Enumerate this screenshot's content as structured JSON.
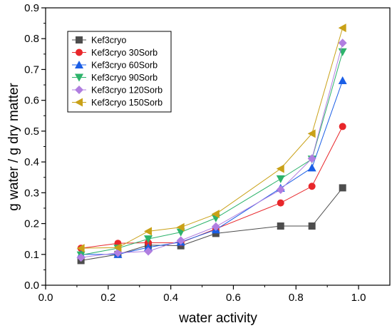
{
  "chart_data": {
    "type": "line",
    "title": "",
    "xlabel": "water activity",
    "ylabel": "g water / g dry matter",
    "xlim": [
      0.0,
      1.1
    ],
    "ylim": [
      0.0,
      0.9
    ],
    "x_ticks": [
      "0.0",
      "0.2",
      "0.4",
      "0.6",
      "0.8",
      "1.0"
    ],
    "y_ticks": [
      "0.0",
      "0.1",
      "0.2",
      "0.3",
      "0.4",
      "0.5",
      "0.6",
      "0.7",
      "0.8",
      "0.9"
    ],
    "grid": false,
    "legend_position": "top-left",
    "x": [
      0.113,
      0.231,
      0.328,
      0.432,
      0.544,
      0.751,
      0.851,
      0.949
    ],
    "series": [
      {
        "name": "Kef3cryo",
        "color": "#4d4d4d",
        "marker": "square",
        "values": [
          0.08,
          0.1,
          0.13,
          0.128,
          0.168,
          0.192,
          0.192,
          0.316
        ]
      },
      {
        "name": "Kef3cryo 30Sorb",
        "color": "#e8262a",
        "marker": "circle",
        "values": [
          0.12,
          0.136,
          0.138,
          0.138,
          0.183,
          0.267,
          0.321,
          0.515
        ]
      },
      {
        "name": "Kef3cryo 60Sorb",
        "color": "#1a5ee6",
        "marker": "triangle-up",
        "values": [
          0.1,
          0.1,
          0.123,
          0.14,
          0.18,
          0.315,
          0.381,
          0.664
        ]
      },
      {
        "name": "Kef3cryo 90Sorb",
        "color": "#2db36b",
        "marker": "triangle-down",
        "values": [
          0.098,
          0.12,
          0.15,
          0.172,
          0.218,
          0.345,
          0.409,
          0.757
        ]
      },
      {
        "name": "Kef3cryo 120Sorb",
        "color": "#b07ee0",
        "marker": "diamond",
        "values": [
          0.09,
          0.105,
          0.11,
          0.145,
          0.19,
          0.31,
          0.411,
          0.786
        ]
      },
      {
        "name": "Kef3cryo 150Sorb",
        "color": "#c9a117",
        "marker": "triangle-left",
        "values": [
          0.12,
          0.122,
          0.175,
          0.188,
          0.231,
          0.378,
          0.492,
          0.835
        ]
      }
    ]
  }
}
